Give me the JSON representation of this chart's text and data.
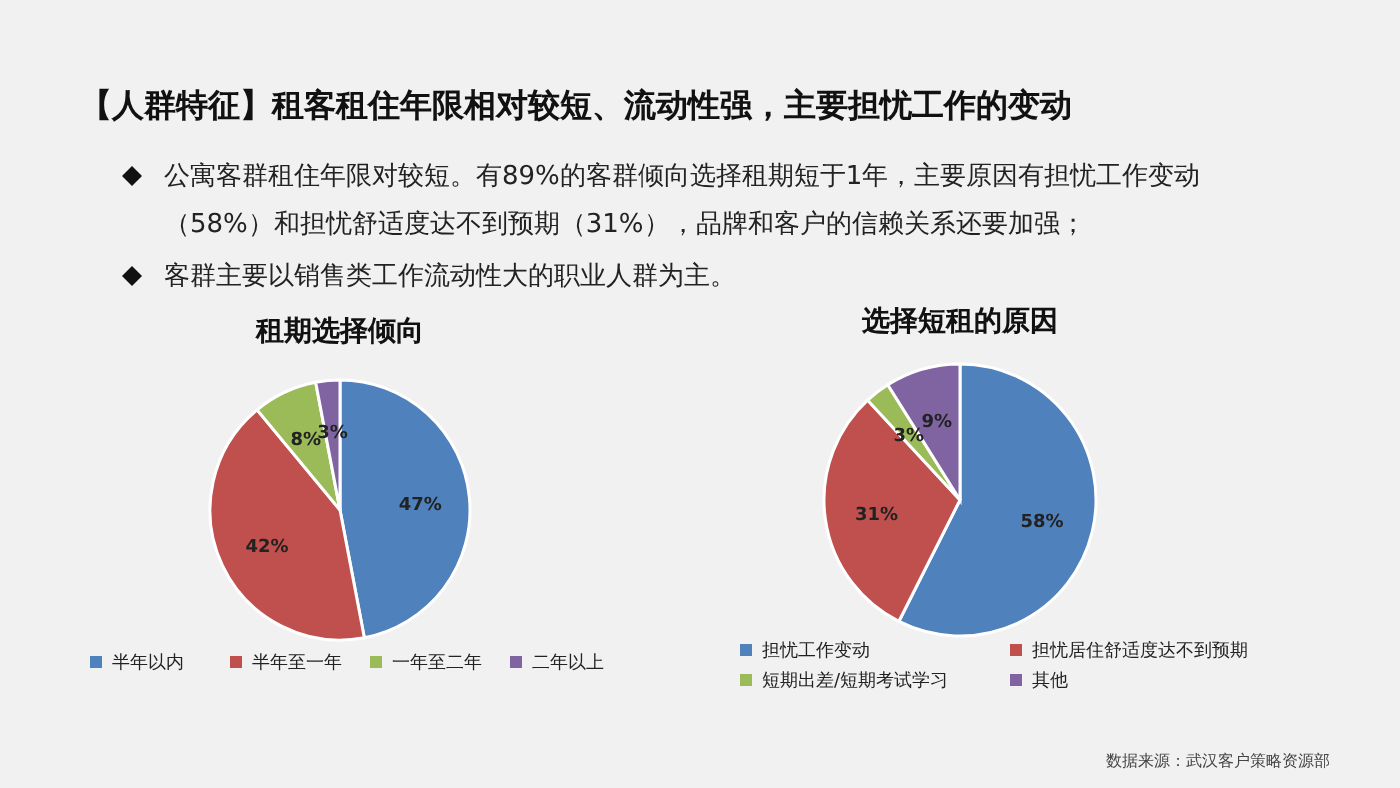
{
  "chart_data": [
    {
      "type": "other",
      "title": "【人群特征】租客租住年限相对较短、流动性强，主要担忧工作的变动",
      "annotations": [
        "公寓客群租住年限对较短。有89%的客群倾向选择租期短于1年，主要原因有担忧工作变动（58%）和担忧舒适度达不到预期（31%），品牌和客户的信赖关系还要加强；",
        "客群主要以销售类工作流动性大的职业人群为主。",
        "数据来源：武汉客户策略资源部"
      ]
    },
    {
      "type": "pie",
      "title": "租期选择倾向",
      "categories": [
        "半年以内",
        "半年至一年",
        "一年至二年",
        "二年以上"
      ],
      "values": [
        47,
        42,
        8,
        3
      ],
      "colors": [
        "#4f81bd",
        "#c0504d",
        "#9bbb59",
        "#8064a2"
      ],
      "value_labels": [
        "47%",
        "42%",
        "8%",
        "3%"
      ],
      "legend": "bottom"
    },
    {
      "type": "pie",
      "title": "选择短租的原因",
      "categories": [
        "担忧工作变动",
        "担忧居住舒适度达不到预期",
        "短期出差/短期考试学习",
        "其他"
      ],
      "values": [
        58,
        31,
        3,
        9
      ],
      "colors": [
        "#4f81bd",
        "#c0504d",
        "#9bbb59",
        "#8064a2"
      ],
      "value_labels": [
        "58%",
        "31%",
        "3%",
        "9%"
      ],
      "legend": "bottom"
    }
  ]
}
